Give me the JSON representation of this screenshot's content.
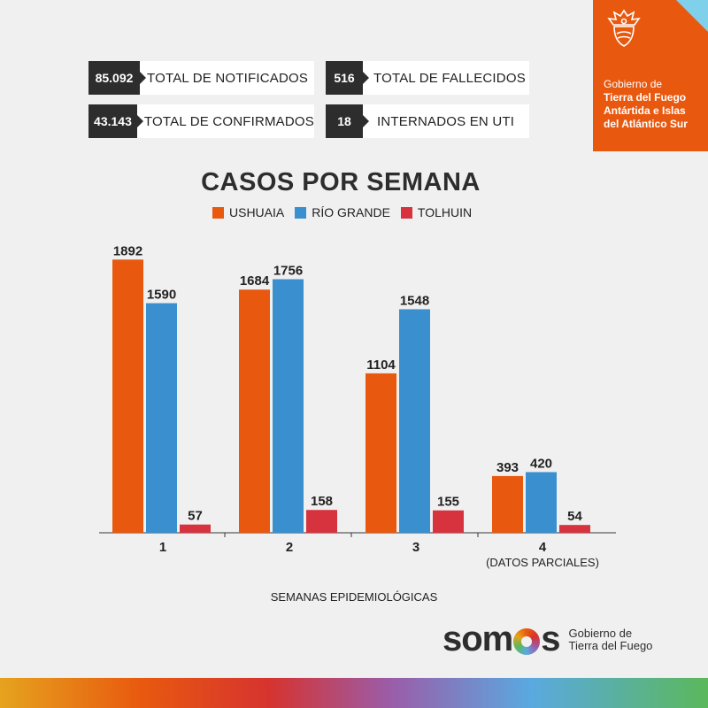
{
  "stats": [
    {
      "value": "85.092",
      "label": "TOTAL DE NOTIFICADOS"
    },
    {
      "value": "516",
      "label": "TOTAL DE FALLECIDOS"
    },
    {
      "value": "43.143",
      "label": "TOTAL DE CONFIRMADOS"
    },
    {
      "value": "18",
      "label": "INTERNADOS EN UTI"
    }
  ],
  "gov": {
    "line1": "Gobierno de",
    "line2": "Tierra del Fuego",
    "line3": "Antártida e Islas",
    "line4": "del Atlántico Sur",
    "accent": "#e8590f"
  },
  "chart_data": {
    "type": "bar",
    "title": "CASOS POR SEMANA",
    "xlabel": "SEMANAS EPIDEMIOLÓGICAS",
    "ylabel": "",
    "categories": [
      "1",
      "2",
      "3",
      "4"
    ],
    "category_notes": [
      "",
      "",
      "",
      "(DATOS PARCIALES)"
    ],
    "series": [
      {
        "name": "USHUAIA",
        "color": "#e8590f",
        "values": [
          1892,
          1684,
          1104,
          393
        ]
      },
      {
        "name": "RÍO GRANDE",
        "color": "#3a8fcf",
        "values": [
          1590,
          1756,
          1548,
          420
        ]
      },
      {
        "name": "TOLHUIN",
        "color": "#d6333f",
        "values": [
          57,
          158,
          155,
          54
        ]
      }
    ],
    "ylim": [
      0,
      1900
    ],
    "grid": false,
    "legend": "top-center",
    "data_labels": true
  },
  "brand": {
    "word_before": "som",
    "word_after": "s",
    "sub1": "Gobierno de",
    "sub2": "Tierra del Fuego"
  }
}
